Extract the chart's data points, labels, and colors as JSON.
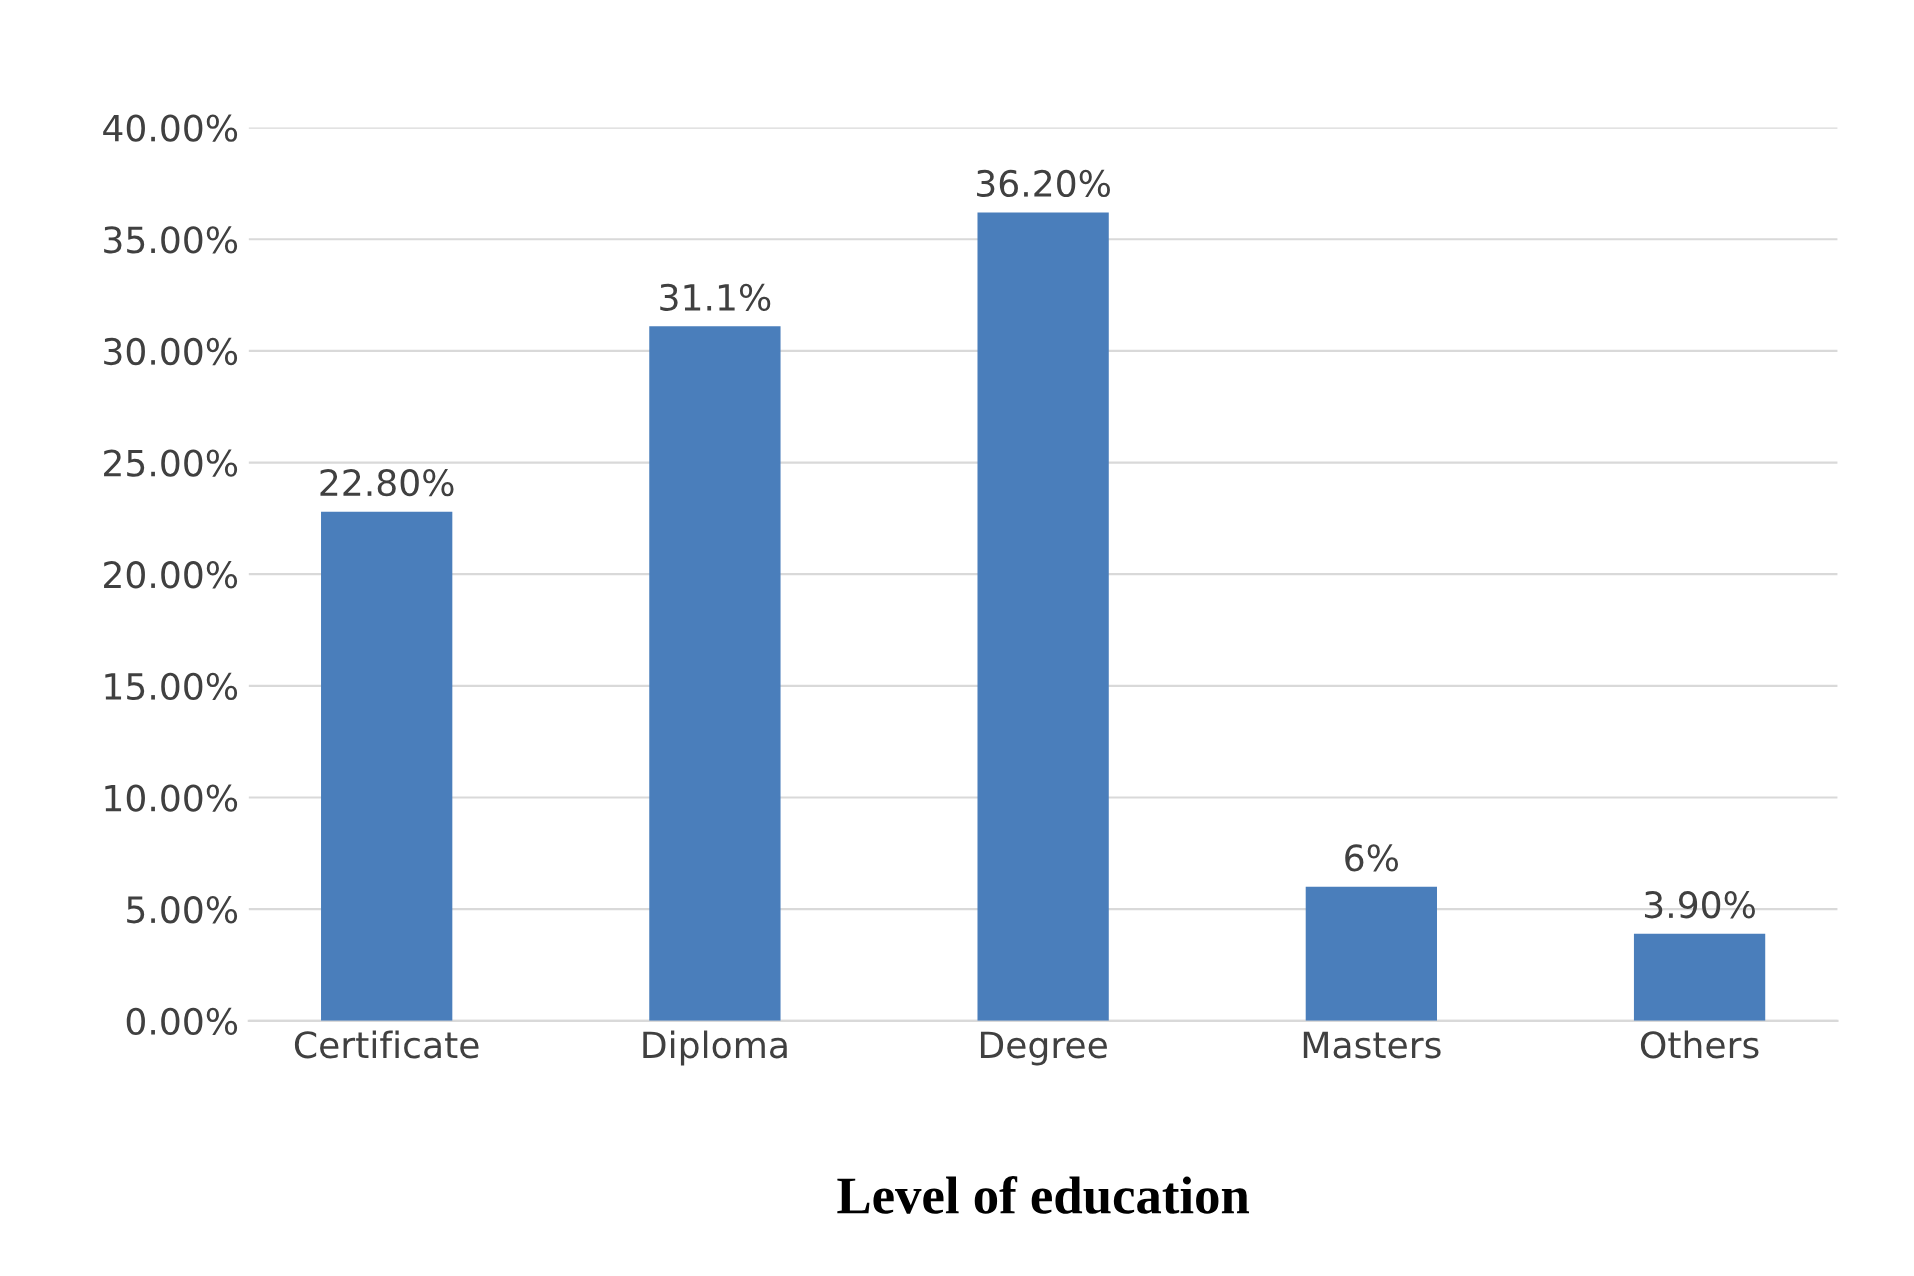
{
  "chart_data": {
    "type": "bar",
    "xlabel": "Level of education",
    "categories": [
      "Certificate",
      "Diploma",
      "Degree",
      "Masters",
      "Others"
    ],
    "values": [
      22.8,
      31.1,
      36.2,
      6,
      3.9
    ],
    "value_labels": [
      "22.80%",
      "31.1%",
      "36.20%",
      "6%",
      "3.90%"
    ],
    "color": "#4a7ebb",
    "ylim": [
      0,
      40
    ],
    "yticks": [
      {
        "value": 0,
        "label": "0.00%"
      },
      {
        "value": 5,
        "label": "5.00%"
      },
      {
        "value": 10,
        "label": "10.00%"
      },
      {
        "value": 15,
        "label": "15.00%"
      },
      {
        "value": 20,
        "label": "20.00%"
      },
      {
        "value": 25,
        "label": "25.00%"
      },
      {
        "value": 30,
        "label": "30.00%"
      },
      {
        "value": 35,
        "label": "35.00%"
      },
      {
        "value": 40,
        "label": "40.00%"
      }
    ],
    "grid": "y"
  }
}
